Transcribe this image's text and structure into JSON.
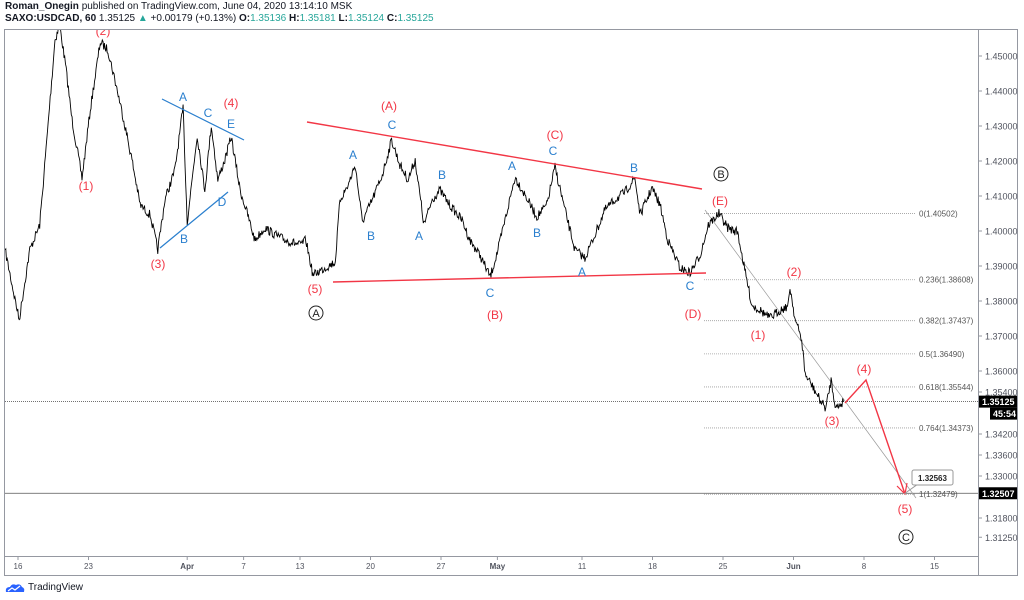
{
  "header": {
    "author": "Roman_Onegin",
    "published": "published on TradingView.com, June 04, 2020 13:14:10 MSK",
    "symbol": "SAXO:USDCAD, 60",
    "last": "1.35125",
    "change": "+0.00179 (+0.13%)",
    "o_label": "O:",
    "o": "1.35136",
    "h_label": "H:",
    "h": "1.35181",
    "l_label": "L:",
    "l": "1.35124",
    "c_label": "C:",
    "c": "1.35125"
  },
  "branding": {
    "name": "TradingView",
    "icon": "tradingview-cloud-icon"
  },
  "colors": {
    "price": "#000000",
    "wave_red": "#f23645",
    "wave_blue": "#2a7fce",
    "up": "#26a69a",
    "fib": "#9e9e9e"
  },
  "chart_data": {
    "type": "line",
    "scale": "linear",
    "ylim": [
      1.3125,
      1.45
    ],
    "y_ticks": [
      "1.45000",
      "1.44000",
      "1.43000",
      "1.42000",
      "1.41000",
      "1.40000",
      "1.39000",
      "1.38000",
      "1.37000",
      "1.36000",
      "1.35400",
      "1.34200",
      "1.33600",
      "1.33000",
      "1.31800",
      "1.31250"
    ],
    "x_ticks": [
      {
        "date": "2020-03-16",
        "label": "16"
      },
      {
        "date": "2020-03-23",
        "label": "23"
      },
      {
        "date": "2020-04-01",
        "label": "Apr"
      },
      {
        "date": "2020-04-07",
        "label": "7"
      },
      {
        "date": "2020-04-13",
        "label": "13"
      },
      {
        "date": "2020-04-20",
        "label": "20"
      },
      {
        "date": "2020-04-27",
        "label": "27"
      },
      {
        "date": "2020-05-01",
        "label": "May"
      },
      {
        "date": "2020-05-11",
        "label": "11"
      },
      {
        "date": "2020-05-18",
        "label": "18"
      },
      {
        "date": "2020-05-25",
        "label": "25"
      },
      {
        "date": "2020-06-01",
        "label": "Jun"
      },
      {
        "date": "2020-06-08",
        "label": "8"
      },
      {
        "date": "2020-06-15",
        "label": "15"
      }
    ],
    "series": [
      {
        "points": [
          [
            "2020-03-13 02:00",
            1.3946
          ],
          [
            "2020-03-16 02:00",
            1.3746
          ],
          [
            "2020-03-16 20:00",
            1.3946
          ],
          [
            "2020-03-17 13:00",
            1.4017
          ],
          [
            "2020-03-18 01:00",
            1.426
          ],
          [
            "2020-03-18 15:00",
            1.4546
          ],
          [
            "2020-03-18 23:00",
            1.4589
          ],
          [
            "2020-03-19 10:00",
            1.446
          ],
          [
            "2020-03-19 20:00",
            1.4317
          ],
          [
            "2020-03-20 13:00",
            1.4151
          ],
          [
            "2020-03-23 03:00",
            1.4346
          ],
          [
            "2020-03-23 20:00",
            1.454
          ],
          [
            "2020-03-24 09:00",
            1.4517
          ],
          [
            "2020-03-24 23:00",
            1.4417
          ],
          [
            "2020-03-25 12:00",
            1.4317
          ],
          [
            "2020-03-26 02:00",
            1.4203
          ],
          [
            "2020-03-26 16:00",
            1.4074
          ],
          [
            "2020-03-27 09:00",
            1.4046
          ],
          [
            "2020-03-27 22:00",
            1.3946
          ],
          [
            "2020-03-30 10:00",
            1.4089
          ],
          [
            "2020-03-31 03:00",
            1.4174
          ],
          [
            "2020-03-31 17:00",
            1.4351
          ],
          [
            "2020-04-01 00:00",
            1.4026
          ],
          [
            "2020-04-01 17:00",
            1.4274
          ],
          [
            "2020-04-02 06:00",
            1.4117
          ],
          [
            "2020-04-02 17:00",
            1.4303
          ],
          [
            "2020-04-03 04:00",
            1.4146
          ],
          [
            "2020-04-03 16:00",
            1.4203
          ],
          [
            "2020-04-06 03:00",
            1.4269
          ],
          [
            "2020-04-06 18:00",
            1.4117
          ],
          [
            "2020-04-07 07:00",
            1.4046
          ],
          [
            "2020-04-07 19:00",
            1.3974
          ],
          [
            "2020-04-08 12:00",
            1.4009
          ],
          [
            "2020-04-09 06:00",
            1.3989
          ],
          [
            "2020-04-09 23:00",
            1.3974
          ],
          [
            "2020-04-13 00:00",
            1.396
          ],
          [
            "2020-04-13 10:00",
            1.3974
          ],
          [
            "2020-04-13 22:00",
            1.3874
          ],
          [
            "2020-04-14 18:00",
            1.3894
          ],
          [
            "2020-04-15 12:00",
            1.3911
          ],
          [
            "2020-04-15 20:00",
            1.4089
          ],
          [
            "2020-04-16 10:00",
            1.4131
          ],
          [
            "2020-04-16 22:00",
            1.4189
          ],
          [
            "2020-04-17 10:00",
            1.4026
          ],
          [
            "2020-04-20 03:00",
            1.4089
          ],
          [
            "2020-04-20 20:00",
            1.416
          ],
          [
            "2020-04-21 12:00",
            1.426
          ],
          [
            "2020-04-22 02:00",
            1.4189
          ],
          [
            "2020-04-22 16:00",
            1.4146
          ],
          [
            "2020-04-23 04:00",
            1.4203
          ],
          [
            "2020-04-23 19:00",
            1.4017
          ],
          [
            "2020-04-24 09:00",
            1.4089
          ],
          [
            "2020-04-24 22:00",
            1.4117
          ],
          [
            "2020-04-27 15:00",
            1.4074
          ],
          [
            "2020-04-28 12:00",
            1.4031
          ],
          [
            "2020-04-29 01:00",
            1.3974
          ],
          [
            "2020-04-29 18:00",
            1.3931
          ],
          [
            "2020-04-30 12:00",
            1.3869
          ],
          [
            "2020-05-01 01:00",
            1.3946
          ],
          [
            "2020-05-01 13:00",
            1.4031
          ],
          [
            "2020-05-04 06:00",
            1.4154
          ],
          [
            "2020-05-04 23:00",
            1.4103
          ],
          [
            "2020-05-05 19:00",
            1.404
          ],
          [
            "2020-05-06 12:00",
            1.4074
          ],
          [
            "2020-05-07 02:00",
            1.4183
          ],
          [
            "2020-05-07 19:00",
            1.406
          ],
          [
            "2020-05-08 12:00",
            1.3946
          ],
          [
            "2020-05-11 05:00",
            1.3923
          ],
          [
            "2020-05-11 22:00",
            1.3989
          ],
          [
            "2020-05-12 15:00",
            1.406
          ],
          [
            "2020-05-13 08:00",
            1.4089
          ],
          [
            "2020-05-14 01:00",
            1.4111
          ],
          [
            "2020-05-14 18:00",
            1.4151
          ],
          [
            "2020-05-15 03:00",
            1.4046
          ],
          [
            "2020-05-15 23:00",
            1.4123
          ],
          [
            "2020-05-18 13:00",
            1.4074
          ],
          [
            "2020-05-19 02:00",
            1.3974
          ],
          [
            "2020-05-19 23:00",
            1.3894
          ],
          [
            "2020-05-20 16:00",
            1.388
          ],
          [
            "2020-05-21 09:00",
            1.3931
          ],
          [
            "2020-05-21 23:00",
            1.4017
          ],
          [
            "2020-05-22 17:00",
            1.405
          ],
          [
            "2020-05-25 08:00",
            1.4009
          ],
          [
            "2020-05-26 01:00",
            1.3997
          ],
          [
            "2020-05-26 13:00",
            1.3889
          ],
          [
            "2020-05-27 01:00",
            1.3789
          ],
          [
            "2020-05-27 15:00",
            1.3774
          ],
          [
            "2020-05-28 08:00",
            1.3751
          ],
          [
            "2020-05-29 01:00",
            1.3774
          ],
          [
            "2020-05-29 15:00",
            1.3786
          ],
          [
            "2020-05-29 18:00",
            1.384
          ],
          [
            "2020-06-01 03:00",
            1.3746
          ],
          [
            "2020-06-01 14:00",
            1.3689
          ],
          [
            "2020-06-01 20:00",
            1.3589
          ],
          [
            "2020-06-02 07:00",
            1.356
          ],
          [
            "2020-06-02 21:00",
            1.3517
          ],
          [
            "2020-06-03 07:00",
            1.3494
          ],
          [
            "2020-06-03 16:00",
            1.3574
          ],
          [
            "2020-06-04 00:00",
            1.3494
          ],
          [
            "2020-06-04 13:00",
            1.35125
          ]
        ]
      }
    ],
    "fib_levels": [
      {
        "ratio": "0",
        "price": 1.40502,
        "label": "0(1.40502)"
      },
      {
        "ratio": "0.236",
        "price": 1.38608,
        "label": "0.236(1.38608)"
      },
      {
        "ratio": "0.382",
        "price": 1.37437,
        "label": "0.382(1.37437)"
      },
      {
        "ratio": "0.5",
        "price": 1.3649,
        "label": "0.5(1.36490)"
      },
      {
        "ratio": "0.618",
        "price": 1.35544,
        "label": "0.618(1.35544)"
      },
      {
        "ratio": "0.764",
        "price": 1.34373,
        "label": "0.764(1.34373)"
      },
      {
        "ratio": "1",
        "price": 1.32479,
        "label": "1(1.32479)"
      }
    ],
    "price_tags": {
      "last": "1.35125",
      "countdown": "45:54",
      "horizontal_line": "1.32507",
      "callout": "1.32563"
    },
    "wave_labels_red": [
      "(2)",
      "(1)",
      "(3)",
      "(4)",
      "(5)",
      "(A)",
      "(B)",
      "(C)",
      "(D)",
      "(E)",
      "(1)",
      "(2)",
      "(3)",
      "(4)",
      "(5)"
    ],
    "wave_labels_blue": [
      "A",
      "B",
      "C",
      "D",
      "E",
      "A",
      "B",
      "C",
      "A",
      "B",
      "C",
      "A",
      "B",
      "C",
      "A",
      "B",
      "C"
    ],
    "wave_labels_circled": [
      "A",
      "B",
      "C"
    ],
    "grid": false
  }
}
